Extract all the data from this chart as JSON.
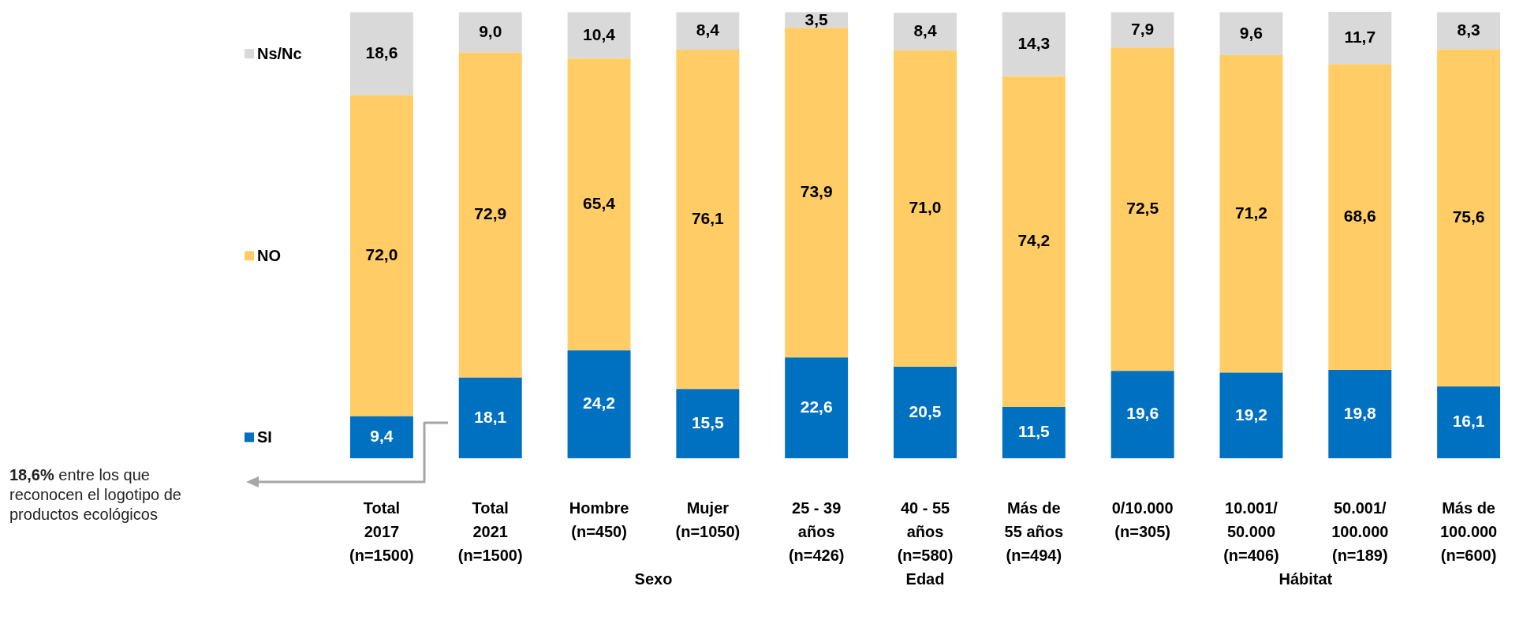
{
  "chart_data": {
    "type": "bar",
    "stacked": true,
    "legend": "left",
    "grid": false,
    "categories": [
      "Total\n2017\n(n=1500)",
      "Total\n2021\n(n=1500)",
      "Hombre\n(n=450)",
      "Mujer\n(n=1050)",
      "25 - 39\naños\n(n=426)",
      "40 - 55\naños\n(n=580)",
      "Más de\n55 años\n(n=494)",
      "0/10.000\n(n=305)",
      "10.001/\n50.000\n(n=406)",
      "50.001/\n100.000\n(n=189)",
      "Más de\n100.000\n(n=600)"
    ],
    "series": [
      {
        "name": "SI",
        "color": "#0070c0",
        "values": [
          9.4,
          18.1,
          24.2,
          15.5,
          22.6,
          20.5,
          11.5,
          19.6,
          19.2,
          19.8,
          16.1
        ],
        "value_labels": [
          "9,4",
          "18,1",
          "24,2",
          "15,5",
          "22,6",
          "20,5",
          "11,5",
          "19,6",
          "19,2",
          "19,8",
          "16,1"
        ]
      },
      {
        "name": "NO",
        "color": "#ffcc66",
        "values": [
          72.0,
          72.9,
          65.4,
          76.1,
          73.9,
          71.0,
          74.2,
          72.5,
          71.2,
          68.6,
          75.6
        ],
        "value_labels": [
          "72,0",
          "72,9",
          "65,4",
          "76,1",
          "73,9",
          "71,0",
          "74,2",
          "72,5",
          "71,2",
          "68,6",
          "75,6"
        ]
      },
      {
        "name": "Ns/Nc",
        "color": "#d9d9d9",
        "values": [
          18.6,
          9.0,
          10.4,
          8.4,
          3.5,
          8.4,
          14.3,
          7.9,
          9.6,
          11.7,
          8.3
        ],
        "value_labels": [
          "18,6",
          "9,0",
          "10,4",
          "8,4",
          "3,5",
          "8,4",
          "14,3",
          "7,9",
          "9,6",
          "11,7",
          "8,3"
        ]
      }
    ],
    "annotations": [
      "18,6% entre los que reconocen el logotipo de productos ecológicos",
      "Sexo",
      "Edad",
      "Hábitat"
    ]
  }
}
